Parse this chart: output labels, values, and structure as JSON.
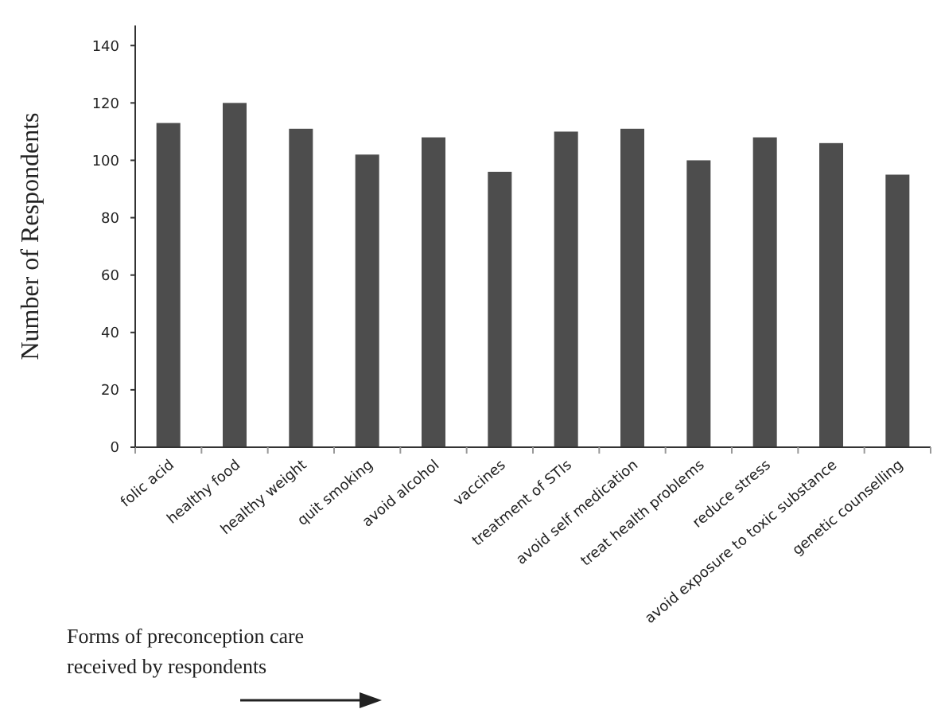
{
  "chart_data": {
    "type": "bar",
    "xlabel": "Forms of preconception care received by respondents",
    "ylabel": "Number of Respondents",
    "categories": [
      "folic acid",
      "healthy food",
      "healthy weight",
      "quit smoking",
      "avoid alcohol",
      "vaccines",
      "treatment of STIs",
      "avoid self medication",
      "treat health problems",
      "reduce stress",
      "avoid exposure to toxic substance",
      "genetic counselling"
    ],
    "values": [
      113,
      120,
      111,
      102,
      108,
      96,
      110,
      111,
      100,
      108,
      106,
      95
    ],
    "color": "#4d4d4d",
    "ylim": [
      0,
      147
    ],
    "yticks": [
      0,
      20,
      40,
      60,
      80,
      100,
      120,
      140
    ],
    "grid": false
  }
}
